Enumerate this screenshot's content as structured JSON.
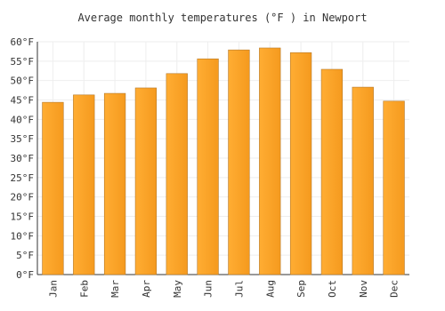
{
  "chart_data": {
    "type": "bar",
    "title": "Average monthly temperatures (°F ) in Newport",
    "categories": [
      "Jan",
      "Feb",
      "Mar",
      "Apr",
      "May",
      "Jun",
      "Jul",
      "Aug",
      "Sep",
      "Oct",
      "Nov",
      "Dec"
    ],
    "values": [
      44.4,
      46.3,
      46.7,
      48.1,
      51.8,
      55.6,
      57.9,
      58.4,
      57.2,
      52.9,
      48.3,
      44.7
    ],
    "color": "#ffad33",
    "ylim": [
      0,
      60
    ],
    "yticks": [
      {
        "value": 0,
        "label": "0°F"
      },
      {
        "value": 5,
        "label": "5°F"
      },
      {
        "value": 10,
        "label": "10°F"
      },
      {
        "value": 15,
        "label": "15°F"
      },
      {
        "value": 20,
        "label": "20°F"
      },
      {
        "value": 25,
        "label": "25°F"
      },
      {
        "value": 30,
        "label": "30°F"
      },
      {
        "value": 35,
        "label": "35°F"
      },
      {
        "value": 40,
        "label": "40°F"
      },
      {
        "value": 45,
        "label": "45°F"
      },
      {
        "value": 50,
        "label": "50°F"
      },
      {
        "value": 55,
        "label": "55°F"
      },
      {
        "value": 60,
        "label": "60°F"
      }
    ],
    "grid": true
  }
}
